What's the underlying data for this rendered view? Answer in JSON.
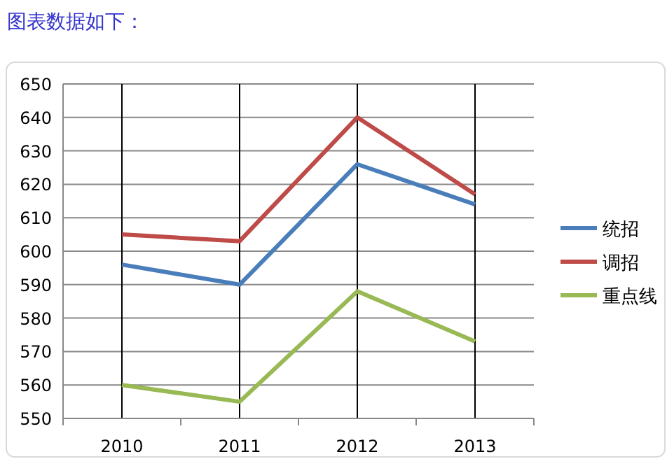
{
  "chart_data": {
    "type": "line",
    "title": "图表数据如下：",
    "categories": [
      "2010",
      "2011",
      "2012",
      "2013"
    ],
    "series": [
      {
        "name": "统招",
        "color": "#4a7ebb",
        "values": [
          596,
          590,
          626,
          614
        ]
      },
      {
        "name": "调招",
        "color": "#be4b48",
        "values": [
          605,
          603,
          640,
          617
        ]
      },
      {
        "name": "重点线",
        "color": "#98b954",
        "values": [
          560,
          555,
          588,
          573
        ]
      }
    ],
    "ylim": [
      550,
      650
    ],
    "yticks": [
      550,
      560,
      570,
      580,
      590,
      600,
      610,
      620,
      630,
      640,
      650
    ],
    "grid": true,
    "legend": "right"
  }
}
